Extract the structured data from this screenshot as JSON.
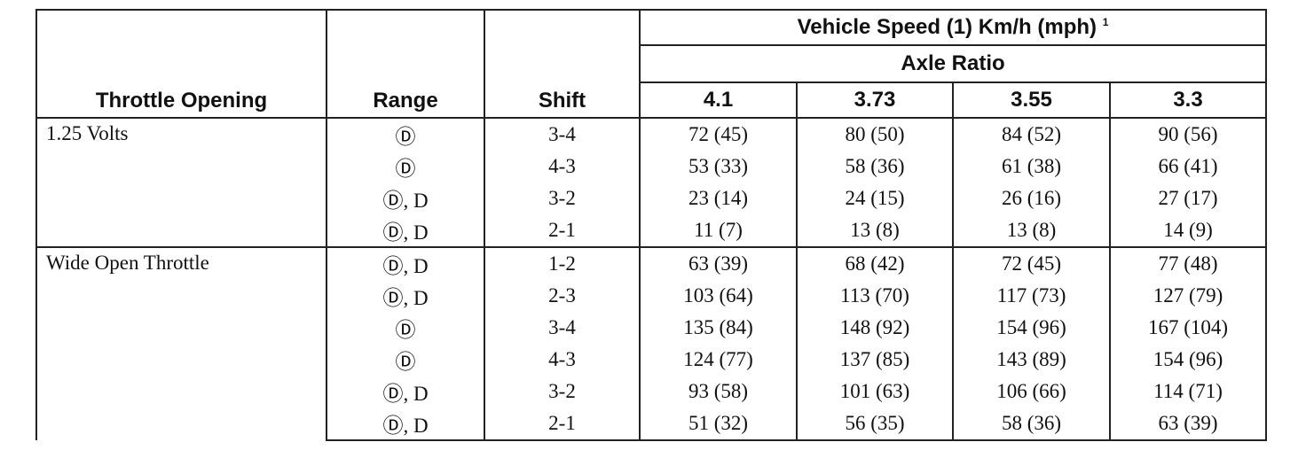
{
  "table": {
    "header": {
      "throttle": "Throttle Opening",
      "range": "Range",
      "shift": "Shift",
      "group": "Vehicle Speed (1) Km/h (mph)",
      "group_note": "1",
      "subgroup": "Axle Ratio",
      "ratios": [
        "4.1",
        "3.73",
        "3.55",
        "3.3"
      ]
    },
    "groups": [
      {
        "throttle": "1.25 Volts",
        "rows": [
          [
            "Ⓓ",
            "3-4",
            "72 (45)",
            "80 (50)",
            "84 (52)",
            "90 (56)"
          ],
          [
            "Ⓓ",
            "4-3",
            "53 (33)",
            "58 (36)",
            "61 (38)",
            "66 (41)"
          ],
          [
            "Ⓓ, D",
            "3-2",
            "23 (14)",
            "24 (15)",
            "26 (16)",
            "27 (17)"
          ],
          [
            "Ⓓ, D",
            "2-1",
            "11 (7)",
            "13 (8)",
            "13 (8)",
            "14 (9)"
          ]
        ]
      },
      {
        "throttle": "Wide Open Throttle",
        "rows": [
          [
            "Ⓓ, D",
            "1-2",
            "63 (39)",
            "68 (42)",
            "72 (45)",
            "77 (48)"
          ],
          [
            "Ⓓ, D",
            "2-3",
            "103 (64)",
            "113 (70)",
            "117 (73)",
            "127 (79)"
          ],
          [
            "Ⓓ",
            "3-4",
            "135 (84)",
            "148 (92)",
            "154 (96)",
            "167 (104)"
          ],
          [
            "Ⓓ",
            "4-3",
            "124 (77)",
            "137 (85)",
            "143 (89)",
            "154 (96)"
          ],
          [
            "Ⓓ, D",
            "3-2",
            "93 (58)",
            "101 (63)",
            "106 (66)",
            "114 (71)"
          ],
          [
            "Ⓓ, D",
            "2-1",
            "51 (32)",
            "56 (35)",
            "58 (36)",
            "63 (39)"
          ]
        ]
      }
    ]
  }
}
